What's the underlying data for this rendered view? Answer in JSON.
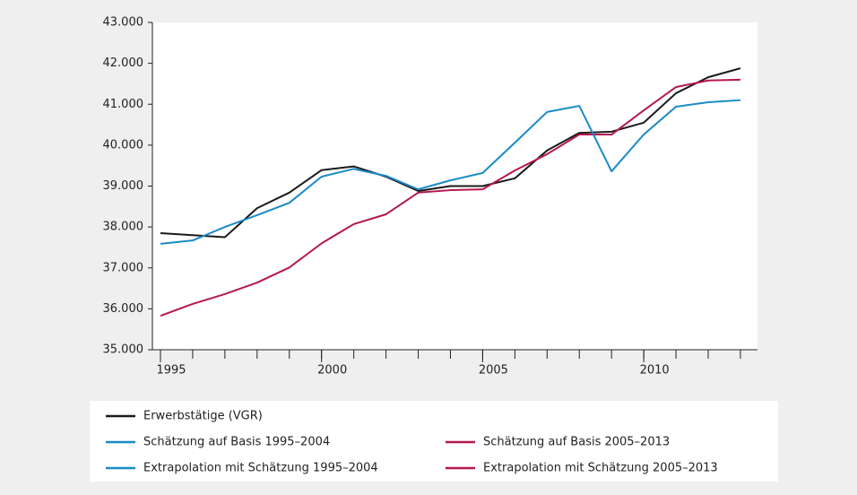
{
  "chart_data": {
    "type": "line",
    "x": [
      1995,
      1996,
      1997,
      1998,
      1999,
      2000,
      2001,
      2002,
      2003,
      2004,
      2005,
      2006,
      2007,
      2008,
      2009,
      2010,
      2011,
      2012,
      2013
    ],
    "xlim": [
      1994.75,
      2013.53
    ],
    "xticks": [
      1995,
      2000,
      2005,
      2010
    ],
    "xminorticks": [
      1995,
      1996,
      1997,
      1998,
      1999,
      2000,
      2001,
      2002,
      2003,
      2004,
      2005,
      2006,
      2007,
      2008,
      2009,
      2010,
      2011,
      2012,
      2013
    ],
    "ylim": [
      35000,
      43000
    ],
    "yticks": [
      {
        "value": 35000,
        "label": "35.000"
      },
      {
        "value": 36000,
        "label": "36.000"
      },
      {
        "value": 37000,
        "label": "37.000"
      },
      {
        "value": 38000,
        "label": "38.000"
      },
      {
        "value": 39000,
        "label": "39.000"
      },
      {
        "value": 40000,
        "label": "40.000"
      },
      {
        "value": 41000,
        "label": "41.000"
      },
      {
        "value": 42000,
        "label": "42.000"
      },
      {
        "value": 43000,
        "label": "43.000"
      }
    ],
    "series": [
      {
        "name": "Erwerbstätige (VGR)",
        "color": "#1a1a1a",
        "values": [
          37850,
          37800,
          37750,
          38460,
          38840,
          39390,
          39480,
          39230,
          38880,
          39000,
          39000,
          39190,
          39870,
          40300,
          40330,
          40550,
          41270,
          41660,
          41880
        ]
      },
      {
        "name": "Schätzung auf Basis 1995–2004",
        "color": "#1a8ac6",
        "values": [
          37590,
          37670,
          38000,
          38290,
          38590,
          39230,
          39420,
          39250,
          38920,
          39140,
          null,
          null,
          null,
          null,
          null,
          null,
          null,
          null,
          null
        ]
      },
      {
        "name": "Schätzung auf Basis 2005–2013",
        "color": "#b5174f",
        "values": [
          null,
          null,
          null,
          null,
          null,
          null,
          null,
          null,
          null,
          null,
          38920,
          39380,
          39780,
          40260,
          40260,
          40850,
          41420,
          41580,
          41600
        ]
      },
      {
        "name": "Extrapolation mit Schätzung 1995–2004",
        "color": "#1a8ac6",
        "values": [
          null,
          null,
          null,
          null,
          null,
          null,
          null,
          null,
          null,
          39140,
          39320,
          40060,
          40810,
          40960,
          39360,
          40260,
          40940,
          41050,
          41100
        ]
      },
      {
        "name": "Extrapolation mit Schätzung 2005–2013",
        "color": "#b5174f",
        "values": [
          35830,
          36120,
          36360,
          36640,
          37010,
          37600,
          38070,
          38310,
          38840,
          38900,
          38920,
          null,
          null,
          null,
          null,
          null,
          null,
          null,
          null
        ]
      }
    ]
  }
}
